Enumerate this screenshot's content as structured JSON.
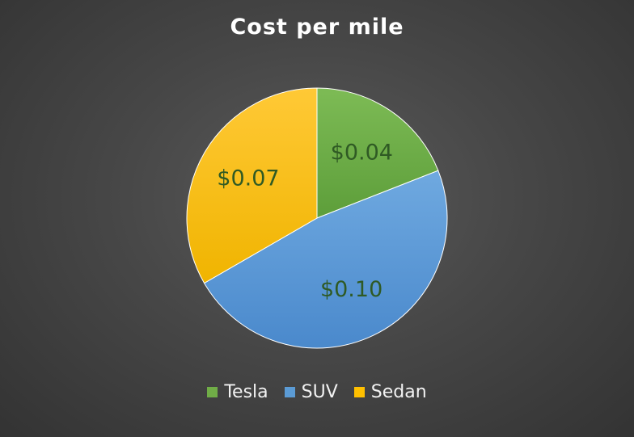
{
  "chart_data": {
    "type": "pie",
    "title": "Cost per mile",
    "categories": [
      "Tesla",
      "SUV",
      "Sedan"
    ],
    "values": [
      0.04,
      0.1,
      0.07
    ],
    "data_labels": [
      "$0.04",
      "$0.10",
      "$0.07"
    ],
    "colors": [
      "#70ad47",
      "#5b9bd5",
      "#ffc000"
    ],
    "legend_position": "bottom"
  }
}
